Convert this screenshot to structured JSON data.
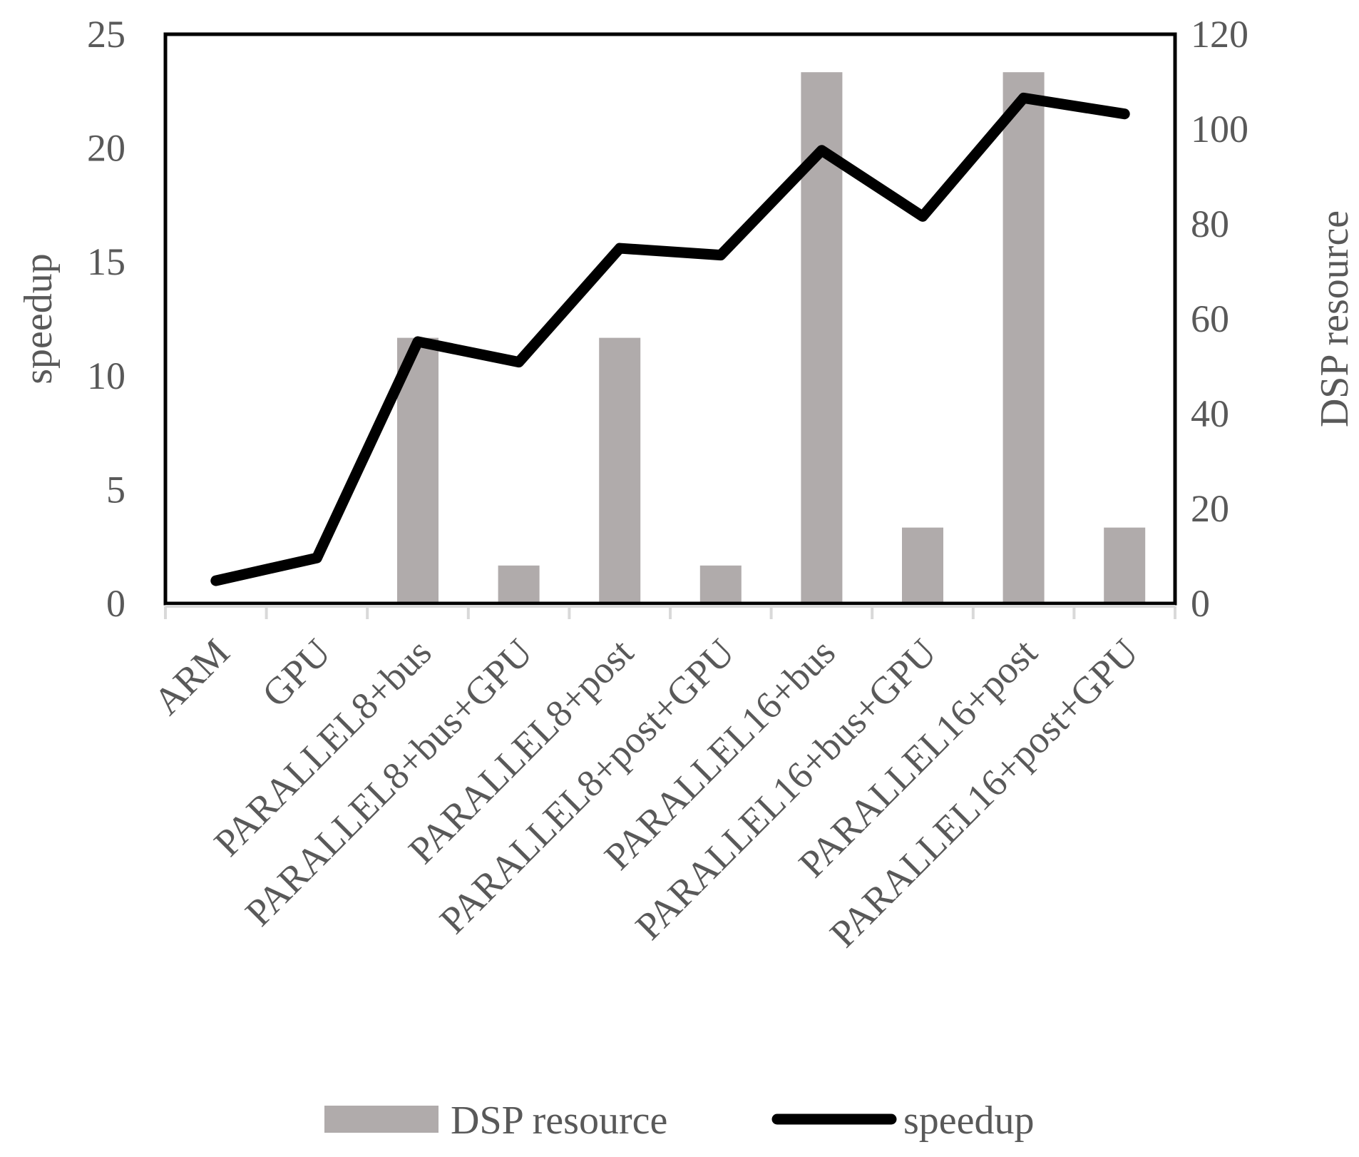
{
  "chart_data": {
    "type": "bar+line",
    "categories": [
      "ARM",
      "GPU",
      "PARALLEL8+bus",
      "PARALLEL8+bus+GPU",
      "PARALLEL8+post",
      "PARALLEL8+post+GPU",
      "PARALLEL16+bus",
      "PARALLEL16+bus+GPU",
      "PARALLEL16+post",
      "PARALLEL16+post+GPU"
    ],
    "series": [
      {
        "name": "DSP resource",
        "type": "bar",
        "axis": "right",
        "color": "#b0abab",
        "values": [
          0,
          0,
          56,
          8,
          56,
          8,
          112,
          16,
          112,
          16
        ]
      },
      {
        "name": "speedup",
        "type": "line",
        "axis": "left",
        "color": "#000000",
        "values": [
          1.0,
          2.0,
          11.5,
          10.6,
          15.6,
          15.3,
          19.9,
          17.0,
          22.2,
          21.5
        ]
      }
    ],
    "y_left": {
      "label": "speedup",
      "min": 0,
      "max": 25,
      "ticks": [
        0,
        5,
        10,
        15,
        20,
        25
      ]
    },
    "y_right": {
      "label": "DSP resource",
      "min": 0,
      "max": 120,
      "ticks": [
        0,
        20,
        40,
        60,
        80,
        100,
        120
      ]
    },
    "legend": {
      "position": "bottom",
      "items": [
        "DSP resource",
        "speedup"
      ]
    },
    "grid": false
  }
}
